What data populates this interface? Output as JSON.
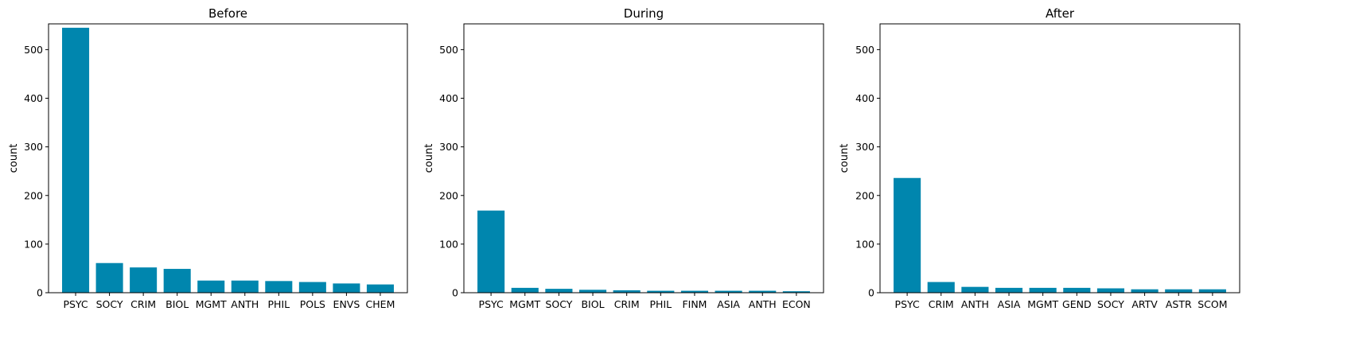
{
  "chart_data": [
    {
      "type": "bar",
      "title": "Before",
      "xlabel": "",
      "ylabel": "count",
      "ylim": [
        0,
        553
      ],
      "yticks": [
        0,
        100,
        200,
        300,
        400,
        500
      ],
      "bar_color": "#0086ae",
      "categories": [
        "PSYC",
        "SOCY",
        "CRIM",
        "BIOL",
        "MGMT",
        "ANTH",
        "PHIL",
        "POLS",
        "ENVS",
        "CHEM"
      ],
      "values": [
        545,
        61,
        52,
        49,
        25,
        25,
        24,
        22,
        19,
        17
      ]
    },
    {
      "type": "bar",
      "title": "During",
      "xlabel": "",
      "ylabel": "count",
      "ylim": [
        0,
        553
      ],
      "yticks": [
        0,
        100,
        200,
        300,
        400,
        500
      ],
      "bar_color": "#0086ae",
      "categories": [
        "PSYC",
        "MGMT",
        "SOCY",
        "BIOL",
        "CRIM",
        "PHIL",
        "FINM",
        "ASIA",
        "ANTH",
        "ECON"
      ],
      "values": [
        169,
        10,
        8,
        6,
        5,
        4,
        4,
        4,
        4,
        3
      ]
    },
    {
      "type": "bar",
      "title": "After",
      "xlabel": "",
      "ylabel": "count",
      "ylim": [
        0,
        553
      ],
      "yticks": [
        0,
        100,
        200,
        300,
        400,
        500
      ],
      "bar_color": "#0086ae",
      "categories": [
        "PSYC",
        "CRIM",
        "ANTH",
        "ASIA",
        "MGMT",
        "GEND",
        "SOCY",
        "ARTV",
        "ASTR",
        "SCOM"
      ],
      "values": [
        236,
        22,
        12,
        10,
        10,
        10,
        9,
        7,
        7,
        7
      ]
    }
  ]
}
